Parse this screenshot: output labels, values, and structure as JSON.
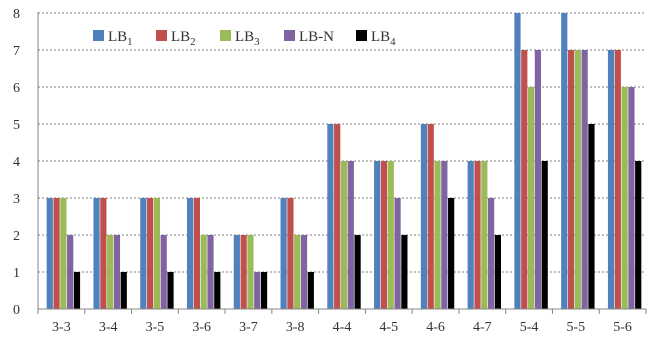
{
  "chart_data": {
    "type": "bar",
    "title": "",
    "xlabel": "",
    "ylabel": "",
    "ylim": [
      0,
      8
    ],
    "yticks": [
      0,
      1,
      2,
      3,
      4,
      5,
      6,
      7,
      8
    ],
    "grid": "horizontal dashed",
    "legend_position": "top-left (inside plot)",
    "categories": [
      "3-3",
      "3-4",
      "3-5",
      "3-6",
      "3-7",
      "3-8",
      "4-4",
      "4-5",
      "4-6",
      "4-7",
      "5-4",
      "5-5",
      "5-6"
    ],
    "series": [
      {
        "name": "LB",
        "sub": "1",
        "color": "#4F81BD",
        "values": [
          3,
          3,
          3,
          3,
          2,
          3,
          5,
          4,
          5,
          4,
          8,
          8,
          7
        ]
      },
      {
        "name": "LB",
        "sub": "2",
        "color": "#C0504D",
        "values": [
          3,
          3,
          3,
          3,
          2,
          3,
          5,
          4,
          5,
          4,
          7,
          7,
          7
        ]
      },
      {
        "name": "LB",
        "sub": "3",
        "color": "#9BBB59",
        "values": [
          3,
          2,
          3,
          2,
          2,
          2,
          4,
          4,
          4,
          4,
          6,
          7,
          6
        ]
      },
      {
        "name": "LB-N",
        "sub": "",
        "color": "#8064A2",
        "values": [
          2,
          2,
          2,
          2,
          1,
          2,
          4,
          3,
          4,
          3,
          7,
          7,
          6
        ]
      },
      {
        "name": "LB",
        "sub": "4",
        "color": "#000000",
        "values": [
          1,
          1,
          1,
          1,
          1,
          1,
          2,
          2,
          3,
          2,
          4,
          5,
          4
        ]
      }
    ]
  }
}
